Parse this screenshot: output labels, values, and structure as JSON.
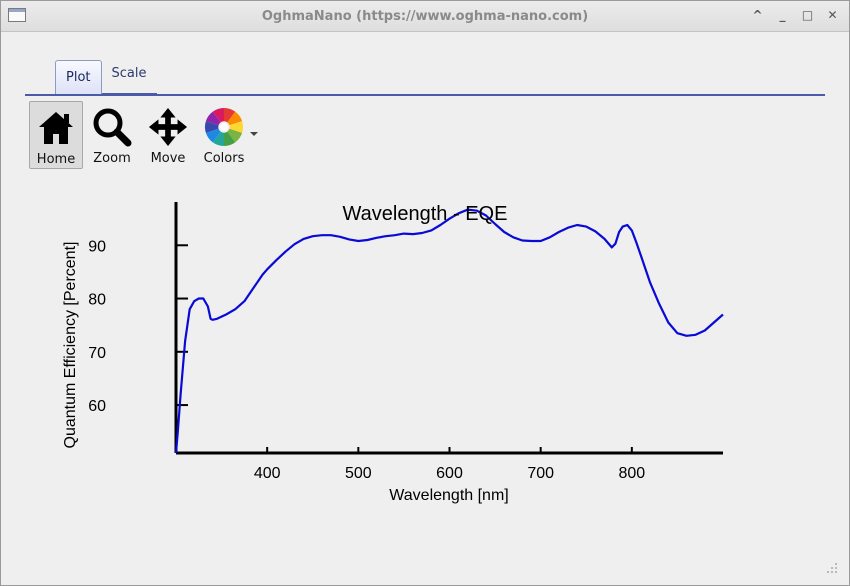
{
  "window": {
    "title": "OghmaNano (https://www.oghma-nano.com)",
    "controls": [
      "^",
      "_",
      "□",
      "✕"
    ]
  },
  "tabs": [
    {
      "label": "Plot",
      "active": true
    },
    {
      "label": "Scale",
      "active": false
    }
  ],
  "toolbar": {
    "home_label": "Home",
    "zoom_label": "Zoom",
    "move_label": "Move",
    "colors_label": "Colors"
  },
  "chart_data": {
    "type": "line",
    "title": "Wavelength - EQE",
    "xlabel": "Wavelength [nm]",
    "ylabel": "Quantum Efficiency [Percent]",
    "xlim": [
      300,
      900
    ],
    "ylim": [
      51,
      97
    ],
    "xticks": [
      400,
      500,
      600,
      700,
      800
    ],
    "yticks": [
      60,
      70,
      80,
      90
    ],
    "grid": false,
    "series": [
      {
        "color": "#0a0ad6",
        "x": [
          300,
          302,
          305,
          310,
          315,
          320,
          325,
          330,
          335,
          338,
          340,
          345,
          355,
          365,
          375,
          385,
          395,
          400,
          410,
          420,
          430,
          440,
          450,
          460,
          470,
          480,
          490,
          500,
          510,
          520,
          530,
          540,
          550,
          560,
          570,
          580,
          590,
          600,
          610,
          620,
          630,
          640,
          650,
          660,
          670,
          680,
          690,
          700,
          710,
          720,
          730,
          740,
          750,
          760,
          770,
          778,
          782,
          786,
          790,
          795,
          800,
          805,
          810,
          820,
          830,
          840,
          850,
          860,
          870,
          880,
          890,
          900
        ],
        "y": [
          51,
          55,
          62,
          72,
          78,
          79.5,
          80,
          80,
          78.5,
          76.2,
          76,
          76.2,
          77,
          78,
          79.5,
          82,
          84.5,
          85.5,
          87.2,
          88.8,
          90.2,
          91.2,
          91.7,
          91.9,
          91.9,
          91.6,
          91.1,
          90.8,
          91,
          91.4,
          91.7,
          91.9,
          92.2,
          92.1,
          92.3,
          92.8,
          93.8,
          95,
          96,
          96.7,
          96.5,
          95.6,
          94,
          92.5,
          91.5,
          90.9,
          90.8,
          90.8,
          91.5,
          92.5,
          93.3,
          93.8,
          93.5,
          92.6,
          91.2,
          89.6,
          90.3,
          92.5,
          93.5,
          93.8,
          92.8,
          90.5,
          88,
          83,
          79,
          75.5,
          73.5,
          73,
          73.2,
          74,
          75.5,
          77
        ]
      }
    ]
  }
}
